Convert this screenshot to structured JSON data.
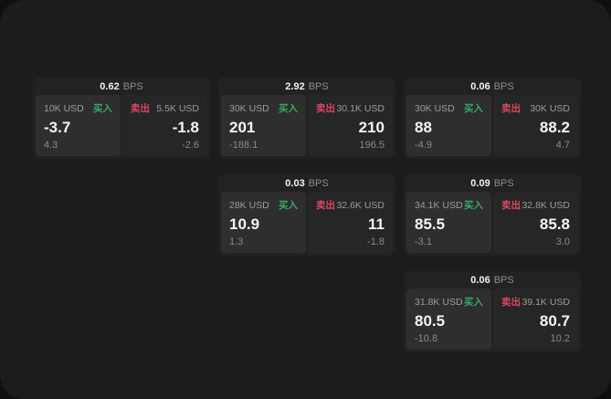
{
  "labels": {
    "bps_unit": "BPS",
    "buy": "买入",
    "sell": "卖出"
  },
  "colors": {
    "buy_green": "#3aa863",
    "sell_red": "#d9485f",
    "panel_bg": "#1c1c1c",
    "card_bg": "#222222",
    "buy_pane_bg": "#2e2e2e",
    "sell_pane_bg": "#262626"
  },
  "cards": [
    {
      "bps": "0.62",
      "buy": {
        "amount": "10K USD",
        "price": "-3.7",
        "delta": "4.3"
      },
      "sell": {
        "amount": "5.5K USD",
        "price": "-1.8",
        "delta": "-2.6"
      }
    },
    {
      "bps": "2.92",
      "buy": {
        "amount": "30K USD",
        "price": "201",
        "delta": "-188.1"
      },
      "sell": {
        "amount": "30.1K USD",
        "price": "210",
        "delta": "196.5"
      }
    },
    {
      "bps": "0.06",
      "buy": {
        "amount": "30K USD",
        "price": "88",
        "delta": "-4.9"
      },
      "sell": {
        "amount": "30K USD",
        "price": "88.2",
        "delta": "4.7"
      }
    },
    {
      "bps": "0.03",
      "buy": {
        "amount": "28K USD",
        "price": "10.9",
        "delta": "1.3"
      },
      "sell": {
        "amount": "32.6K USD",
        "price": "11",
        "delta": "-1.8"
      }
    },
    {
      "bps": "0.09",
      "buy": {
        "amount": "34.1K USD",
        "price": "85.5",
        "delta": "-3.1"
      },
      "sell": {
        "amount": "32.8K USD",
        "price": "85.8",
        "delta": "3.0"
      }
    },
    {
      "bps": "0.06",
      "buy": {
        "amount": "31.8K USD",
        "price": "80.5",
        "delta": "-10.8"
      },
      "sell": {
        "amount": "39.1K USD",
        "price": "80.7",
        "delta": "10.2"
      }
    }
  ]
}
